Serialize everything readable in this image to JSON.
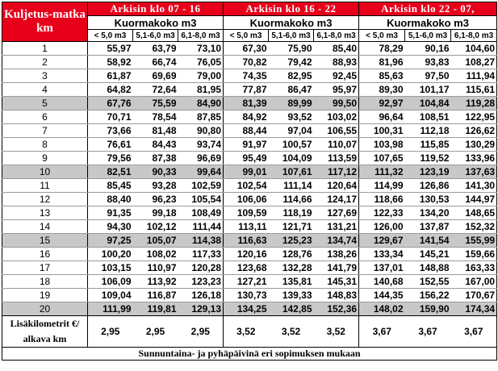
{
  "header": {
    "corner_label": "Kuljetus-matka km",
    "periods": [
      {
        "label": "Arkisin   klo 07 - 16"
      },
      {
        "label": "Arkisin   klo 16 - 22"
      },
      {
        "label": "Arkisin  klo 22 - 07,"
      }
    ],
    "load_label": "Kuormakoko  m3",
    "load_classes": [
      "< 5,0 m3",
      "5,1-6,0 m3",
      "6,1-8,0 m3"
    ]
  },
  "rows": [
    {
      "km": "1",
      "values": [
        "55,97",
        "63,79",
        "73,10",
        "67,30",
        "75,90",
        "85,40",
        "78,29",
        "90,16",
        "104,60"
      ]
    },
    {
      "km": "2",
      "values": [
        "58,92",
        "66,74",
        "76,05",
        "70,82",
        "79,42",
        "88,93",
        "81,96",
        "93,83",
        "108,27"
      ]
    },
    {
      "km": "3",
      "values": [
        "61,87",
        "69,69",
        "79,00",
        "74,35",
        "82,95",
        "92,45",
        "85,63",
        "97,50",
        "111,94"
      ]
    },
    {
      "km": "4",
      "values": [
        "64,82",
        "72,64",
        "81,95",
        "77,87",
        "86,47",
        "95,97",
        "89,30",
        "101,17",
        "115,61"
      ]
    },
    {
      "km": "5",
      "values": [
        "67,76",
        "75,59",
        "84,90",
        "81,39",
        "89,99",
        "99,50",
        "92,97",
        "104,84",
        "119,28"
      ]
    },
    {
      "km": "6",
      "values": [
        "70,71",
        "78,54",
        "87,85",
        "84,92",
        "93,52",
        "103,02",
        "96,64",
        "108,51",
        "122,95"
      ]
    },
    {
      "km": "7",
      "values": [
        "73,66",
        "81,48",
        "90,80",
        "88,44",
        "97,04",
        "106,55",
        "100,31",
        "112,18",
        "126,62"
      ]
    },
    {
      "km": "8",
      "values": [
        "76,61",
        "84,43",
        "93,74",
        "91,97",
        "100,57",
        "110,07",
        "103,98",
        "115,85",
        "130,29"
      ]
    },
    {
      "km": "9",
      "values": [
        "79,56",
        "87,38",
        "96,69",
        "95,49",
        "104,09",
        "113,59",
        "107,65",
        "119,52",
        "133,96"
      ]
    },
    {
      "km": "10",
      "values": [
        "82,51",
        "90,33",
        "99,64",
        "99,01",
        "107,61",
        "117,12",
        "111,32",
        "123,19",
        "137,63"
      ]
    },
    {
      "km": "11",
      "values": [
        "85,45",
        "93,28",
        "102,59",
        "102,54",
        "111,14",
        "120,64",
        "114,99",
        "126,86",
        "141,30"
      ]
    },
    {
      "km": "12",
      "values": [
        "88,40",
        "96,23",
        "105,54",
        "106,06",
        "114,66",
        "124,17",
        "118,66",
        "130,53",
        "144,97"
      ]
    },
    {
      "km": "13",
      "values": [
        "91,35",
        "99,18",
        "108,49",
        "109,59",
        "118,19",
        "127,69",
        "122,33",
        "134,20",
        "148,65"
      ]
    },
    {
      "km": "14",
      "values": [
        "94,30",
        "102,12",
        "111,44",
        "113,11",
        "121,71",
        "131,21",
        "126,00",
        "137,87",
        "152,32"
      ]
    },
    {
      "km": "15",
      "values": [
        "97,25",
        "105,07",
        "114,38",
        "116,63",
        "125,23",
        "134,74",
        "129,67",
        "141,54",
        "155,99"
      ]
    },
    {
      "km": "16",
      "values": [
        "100,20",
        "108,02",
        "117,33",
        "120,16",
        "128,76",
        "138,26",
        "133,34",
        "145,21",
        "159,66"
      ]
    },
    {
      "km": "17",
      "values": [
        "103,15",
        "110,97",
        "120,28",
        "123,68",
        "132,28",
        "141,79",
        "137,01",
        "148,88",
        "163,33"
      ]
    },
    {
      "km": "18",
      "values": [
        "106,09",
        "113,92",
        "123,23",
        "127,21",
        "135,81",
        "145,31",
        "140,68",
        "152,55",
        "167,00"
      ]
    },
    {
      "km": "19",
      "values": [
        "109,04",
        "116,87",
        "126,18",
        "130,73",
        "139,33",
        "148,83",
        "144,35",
        "156,22",
        "170,67"
      ]
    },
    {
      "km": "20",
      "values": [
        "111,99",
        "119,81",
        "129,13",
        "134,25",
        "142,85",
        "152,36",
        "148,02",
        "159,90",
        "174,34"
      ]
    }
  ],
  "extra": {
    "label": "Lisäkilometrit €/ alkava km",
    "values": [
      "2,95",
      "2,95",
      "2,95",
      "3,52",
      "3,52",
      "3,52",
      "3,67",
      "3,67",
      "3,67"
    ]
  },
  "footer": "Sunnuntaina- ja pyhäpäivinä eri sopimuksen mukaan"
}
